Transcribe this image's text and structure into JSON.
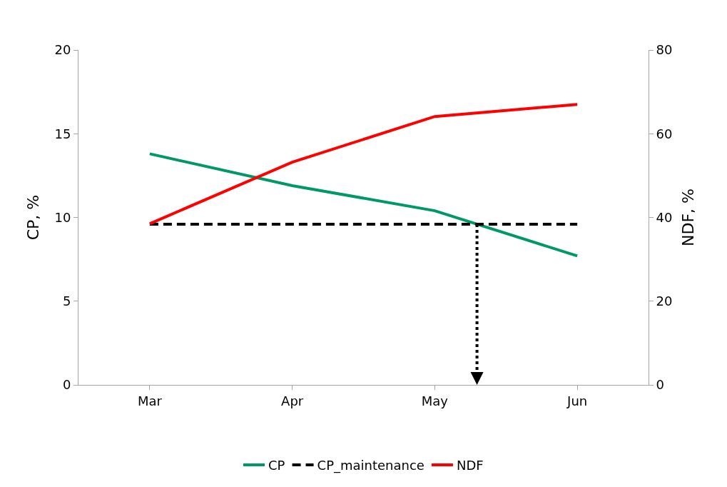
{
  "chart_data": {
    "type": "line",
    "ylabel": "CP, %",
    "y2label": "NDF, %",
    "categories": [
      "Mar",
      "Apr",
      "May",
      "Jun"
    ],
    "series": [
      {
        "name": "CP",
        "color": "#009966",
        "values": [
          13.8,
          11.9,
          10.4,
          7.7
        ],
        "line_style": "solid"
      },
      {
        "name": "CP_maintenance",
        "color": "#000000",
        "values": [
          9.6,
          9.6,
          9.6,
          9.6
        ],
        "line_style": "dashed"
      },
      {
        "name": "NDF",
        "color": "#ff0000",
        "values": [
          38.5,
          53.2,
          64.1,
          67.0
        ],
        "axis": "y2",
        "line_style": "solid"
      }
    ],
    "ylim": [
      0,
      20
    ],
    "yticks": [
      0,
      5,
      10,
      15,
      20
    ],
    "y2lim": [
      0,
      80
    ],
    "y2ticks": [
      0,
      20,
      40,
      60,
      80
    ],
    "legend": "bottom",
    "marker": "none"
  }
}
